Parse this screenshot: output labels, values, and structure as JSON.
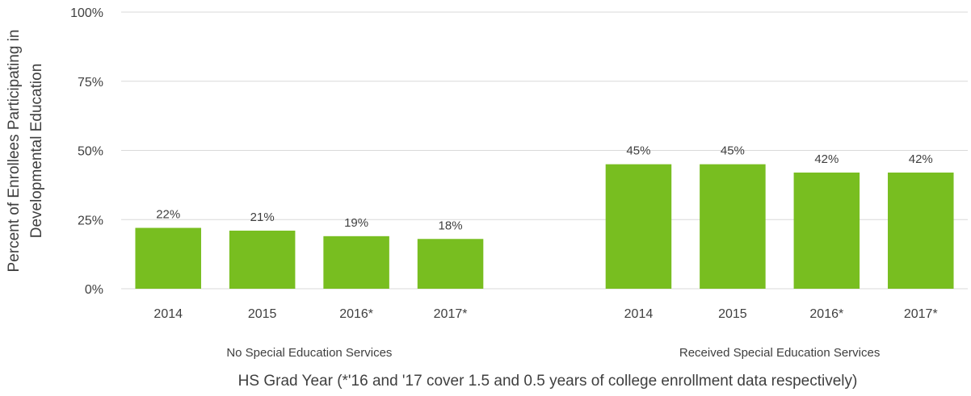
{
  "chart_data": {
    "type": "bar",
    "ylabel_lines": [
      "Percent of Enrollees Participating in",
      "Developmental Education"
    ],
    "xlabel": "HS Grad Year (*'16 and '17 cover 1.5 and 0.5 years of college enrollment data respectively)",
    "ylim": [
      0,
      100
    ],
    "y_ticks": [
      "0%",
      "25%",
      "50%",
      "75%",
      "100%"
    ],
    "grid": true,
    "bar_color": "#78be20",
    "groups": [
      {
        "name": "No Special Education Services",
        "categories": [
          "2014",
          "2015",
          "2016*",
          "2017*"
        ],
        "values": [
          22,
          21,
          19,
          18
        ],
        "labels": [
          "22%",
          "21%",
          "19%",
          "18%"
        ]
      },
      {
        "name": "Received Special Education Services",
        "categories": [
          "2014",
          "2015",
          "2016*",
          "2017*"
        ],
        "values": [
          45,
          45,
          42,
          42
        ],
        "labels": [
          "45%",
          "45%",
          "42%",
          "42%"
        ]
      }
    ]
  }
}
